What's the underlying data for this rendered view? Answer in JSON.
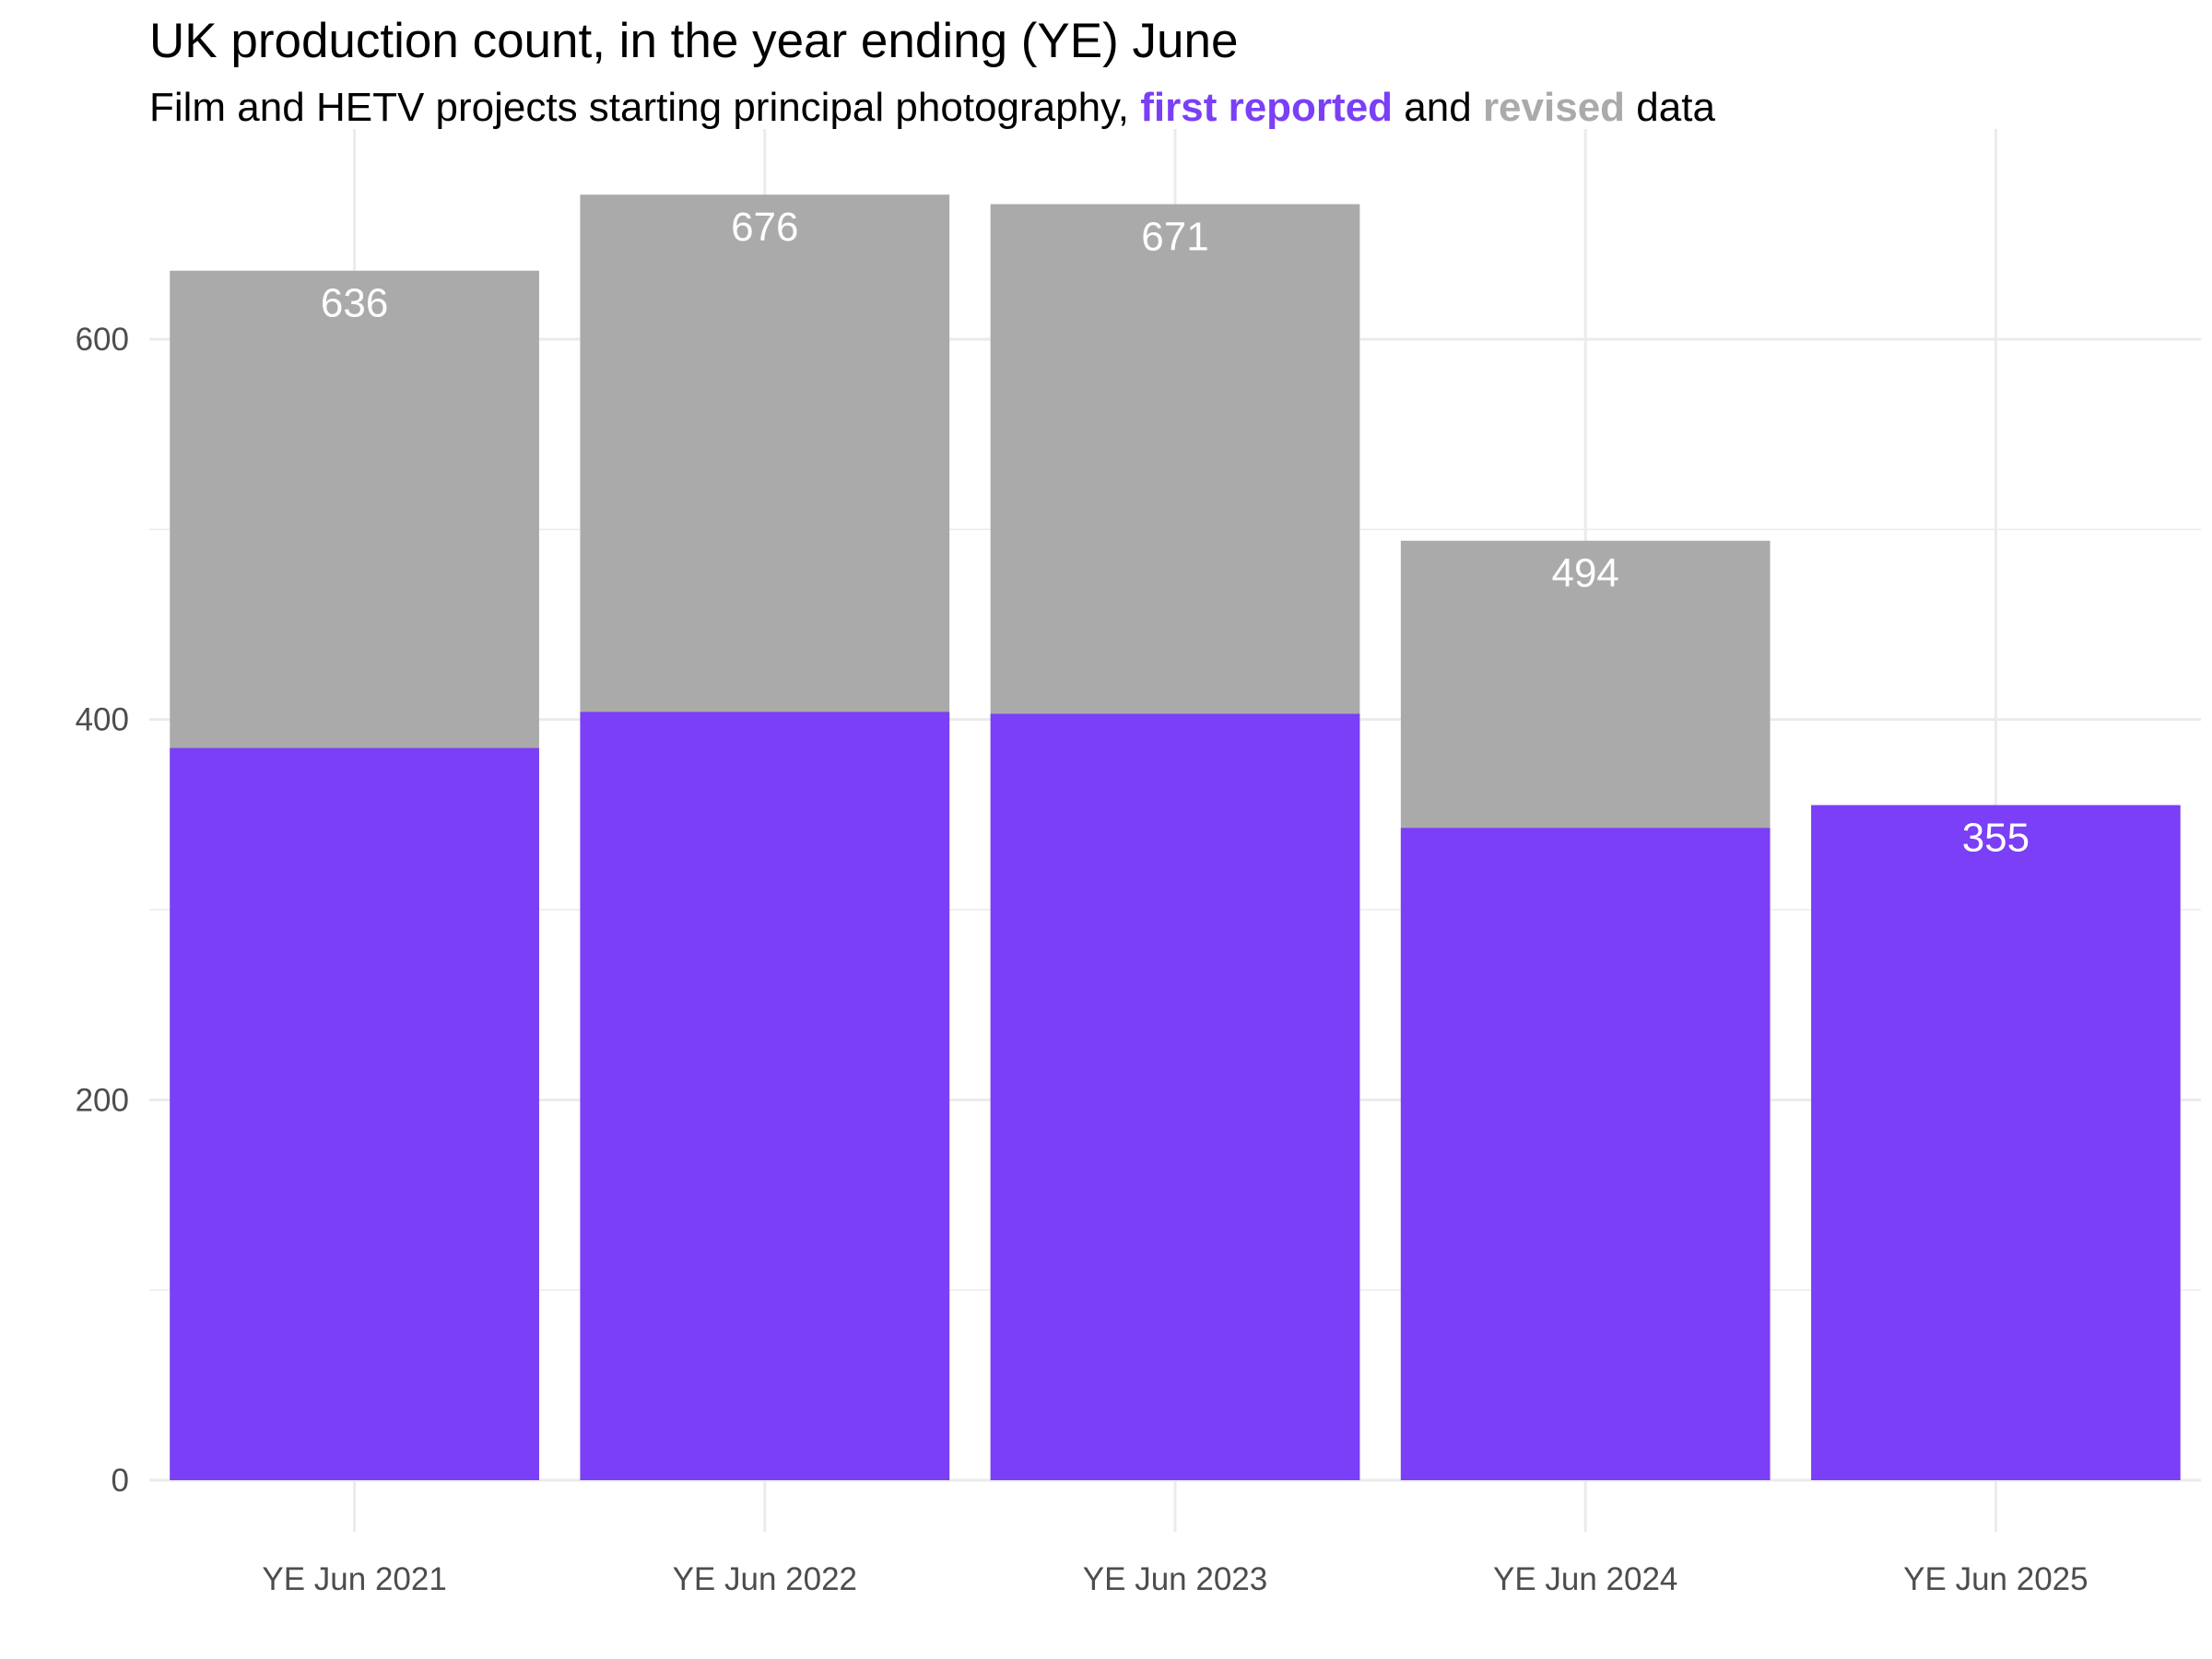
{
  "chart_data": {
    "type": "bar",
    "title": "UK production count, in the year ending (YE) June",
    "subtitle": {
      "prefix": "Film and HETV projects starting principal photography, ",
      "first_label": "first reported",
      "middle": " and ",
      "revised_label": "revised",
      "suffix": " data"
    },
    "categories": [
      "YE Jun 2021",
      "YE Jun 2022",
      "YE Jun 2023",
      "YE Jun 2024",
      "YE Jun 2025"
    ],
    "series": [
      {
        "name": "first reported",
        "color": "#7a3ff7",
        "values": [
          385,
          404,
          403,
          343,
          355
        ]
      },
      {
        "name": "revised",
        "color": "#aaaaaa",
        "values": [
          636,
          676,
          671,
          494,
          null
        ]
      }
    ],
    "data_labels": [
      "636",
      "676",
      "671",
      "494",
      "355"
    ],
    "ylim": [
      0,
      700
    ],
    "y_ticks": [
      0,
      200,
      400,
      600
    ],
    "y_minor_ticks": [
      100,
      300,
      500
    ],
    "xlabel": "",
    "ylabel": "",
    "grid": true,
    "legend": "none"
  }
}
